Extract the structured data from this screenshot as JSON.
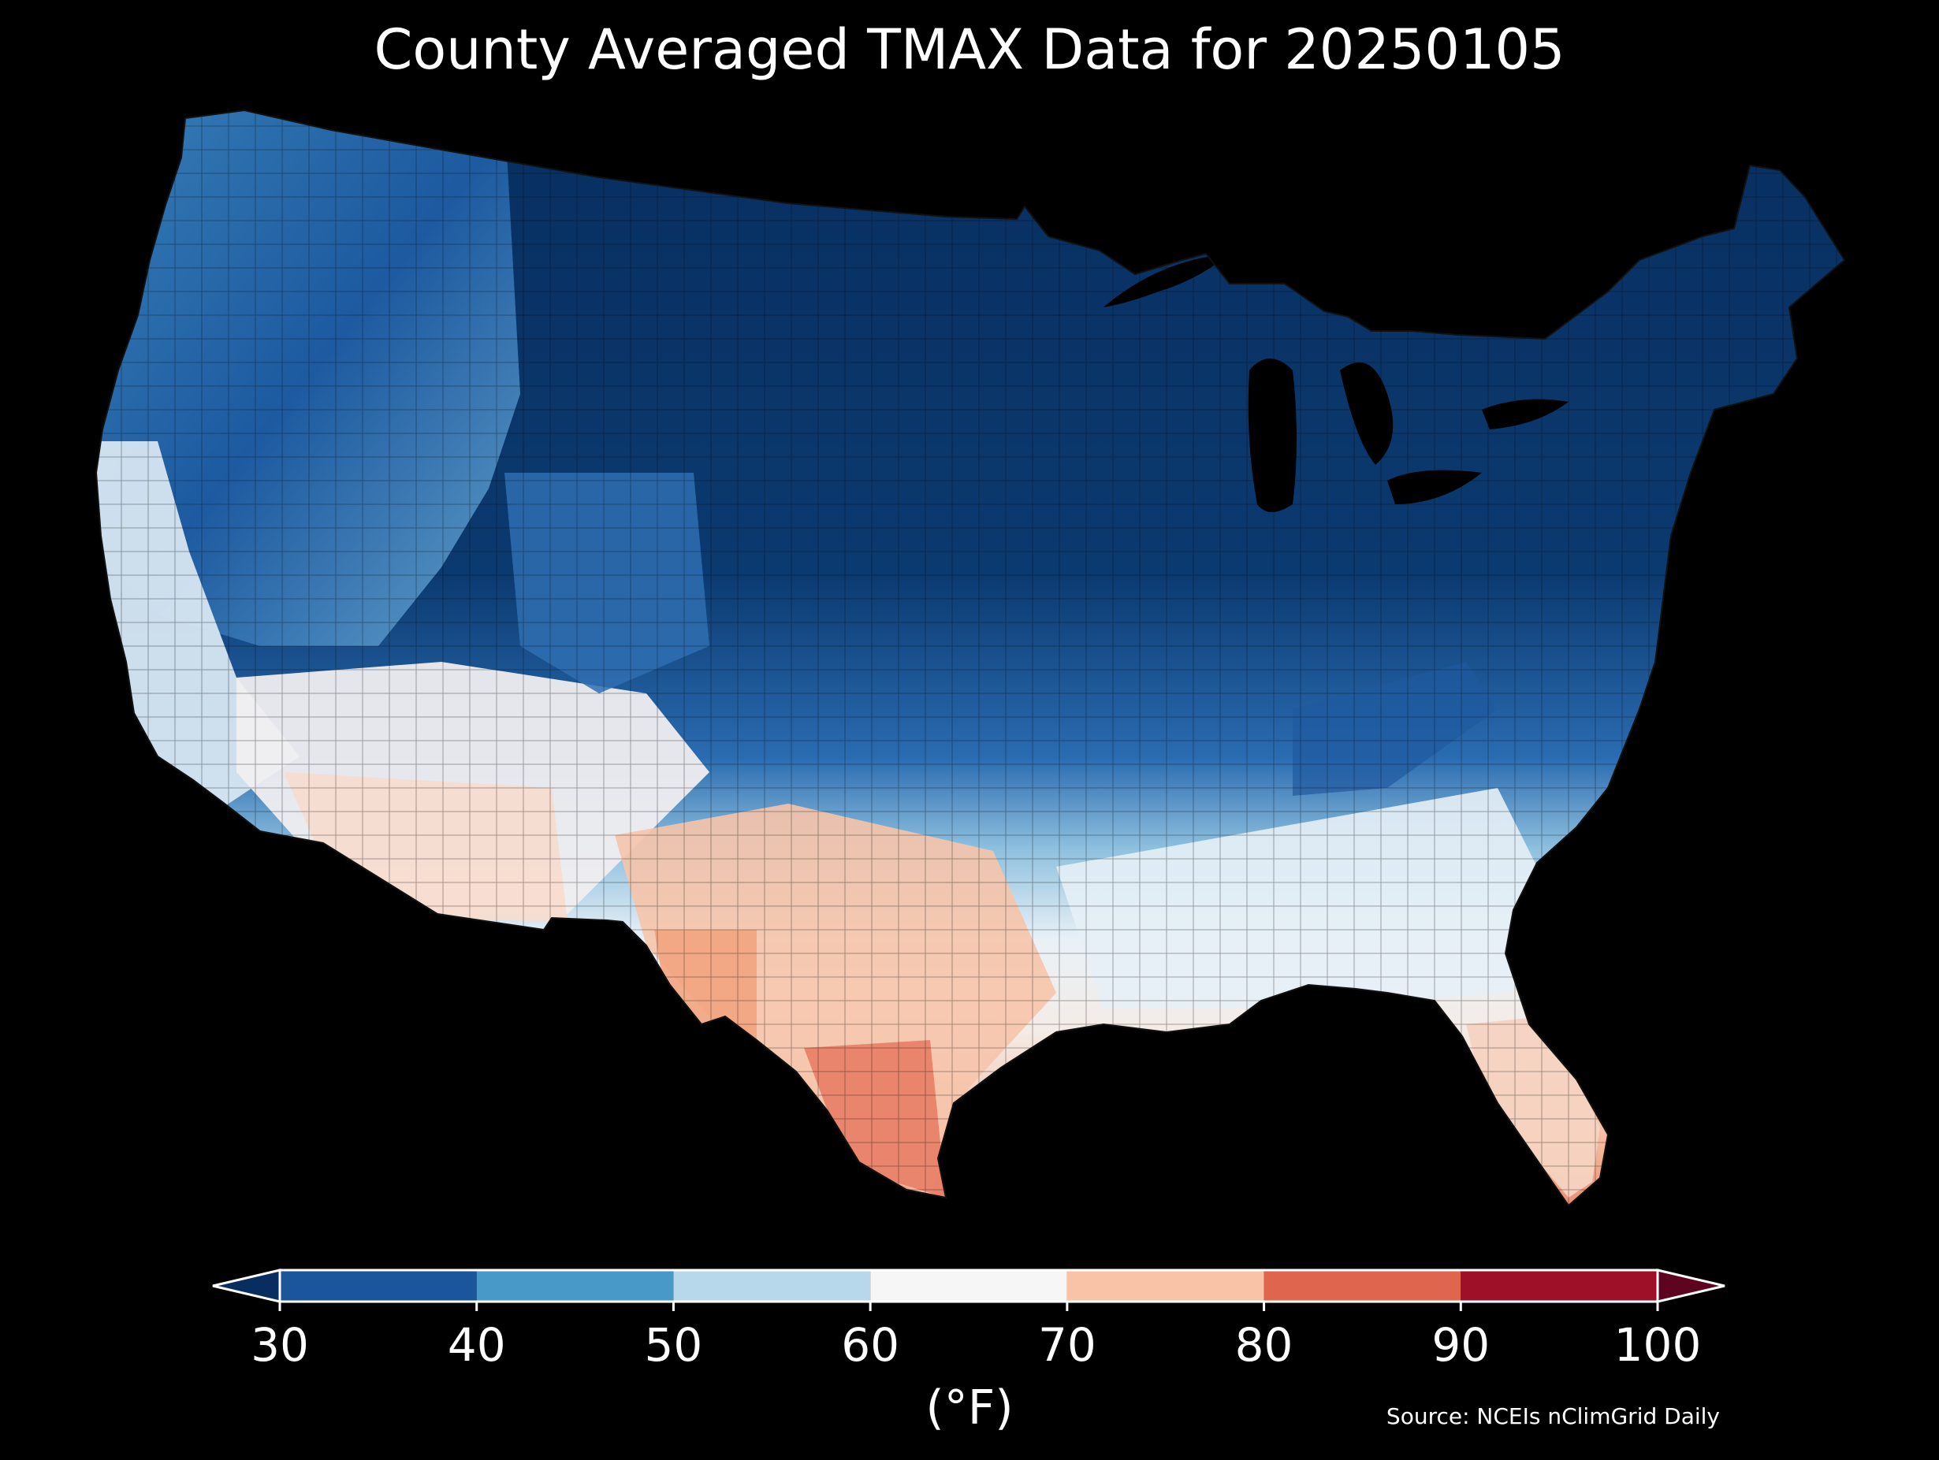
{
  "title": "County Averaged TMAX Data for 20250105",
  "colorbar": {
    "unit_label": "(°F)",
    "ticks": [
      "30",
      "40",
      "50",
      "60",
      "70",
      "80",
      "90",
      "100"
    ],
    "bins": [
      {
        "range": [
          30,
          40
        ],
        "color": "#1b559b"
      },
      {
        "range": [
          40,
          50
        ],
        "color": "#4898c8"
      },
      {
        "range": [
          50,
          60
        ],
        "color": "#b7d7ea"
      },
      {
        "range": [
          60,
          70
        ],
        "color": "#f6f6f6"
      },
      {
        "range": [
          70,
          80
        ],
        "color": "#f9c3a8"
      },
      {
        "range": [
          80,
          90
        ],
        "color": "#e0654f"
      },
      {
        "range": [
          90,
          100
        ],
        "color": "#9d1027"
      }
    ],
    "under_color": "#082e5f",
    "over_color": "#5e0420",
    "extend": "both"
  },
  "source": "Source: NCEIs nClimGrid Daily",
  "map": {
    "region": "Contiguous United States",
    "units": "county",
    "background_color": "#000000",
    "pattern": "coldest (<30°F) across northern plains, Midwest and Northeast; warmest (70–85°F) in south Texas and south Florida"
  }
}
